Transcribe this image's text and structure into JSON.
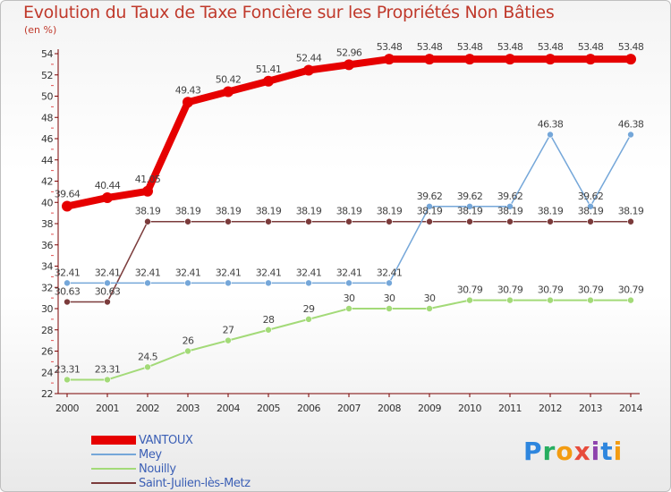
{
  "title": "Evolution du Taux de Taxe Foncière sur les Propriétés Non Bâties",
  "unit_label": "(en %)",
  "logo": {
    "text": "Proxiti",
    "letters": [
      "P",
      "r",
      "o",
      "x",
      "i",
      "t",
      "i"
    ],
    "colors": [
      "#2e86de",
      "#27ae60",
      "#f39c12",
      "#e74c3c",
      "#8e44ad",
      "#2e86de",
      "#f39c12"
    ]
  },
  "chart_data": {
    "type": "line",
    "title": "Evolution du Taux de Taxe Foncière sur les Propriétés Non Bâties",
    "ylabel": "(en %)",
    "xlabel": "",
    "ylim": [
      22,
      54
    ],
    "yticks": [
      22,
      24,
      26,
      28,
      30,
      32,
      34,
      36,
      38,
      40,
      42,
      44,
      46,
      48,
      50,
      52,
      54
    ],
    "x": [
      "2000",
      "2001",
      "2002",
      "2003",
      "2004",
      "2005",
      "2006",
      "2007",
      "2008",
      "2009",
      "2010",
      "2011",
      "2012",
      "2013",
      "2014"
    ],
    "series": [
      {
        "name": "VANTOUX",
        "color": "#e60000",
        "values": [
          39.64,
          40.44,
          41.05,
          49.43,
          50.42,
          51.41,
          52.44,
          52.96,
          53.48,
          53.48,
          53.48,
          53.48,
          53.48,
          53.48,
          53.48
        ],
        "labels": [
          "39.64",
          "40.44",
          "41.05",
          "49.43",
          "50.42",
          "51.41",
          "52.44",
          "52.96",
          "53.48",
          "53.48",
          "53.48",
          "53.48",
          "53.48",
          "53.48",
          "53.48"
        ]
      },
      {
        "name": "Mey",
        "color": "#75a7d9",
        "values": [
          32.41,
          32.41,
          32.41,
          32.41,
          32.41,
          32.41,
          32.41,
          32.41,
          32.41,
          39.62,
          39.62,
          39.62,
          46.38,
          39.62,
          46.38
        ],
        "labels": [
          "32.41",
          "32.41",
          "32.41",
          "32.41",
          "32.41",
          "32.41",
          "32.41",
          "32.41",
          "32.41",
          "39.62",
          "39.62",
          "39.62",
          "46.38",
          "39.62",
          "46.38"
        ]
      },
      {
        "name": "Nouilly",
        "color": "#a3da78",
        "values": [
          23.31,
          23.31,
          24.5,
          26,
          27,
          28,
          29,
          30,
          30,
          30,
          30.79,
          30.79,
          30.79,
          30.79,
          30.79
        ],
        "labels": [
          "23.31",
          "23.31",
          "24.5",
          "26",
          "27",
          "28",
          "29",
          "30",
          "30",
          "30",
          "30.79",
          "30.79",
          "30.79",
          "30.79",
          "30.79"
        ]
      },
      {
        "name": "Saint-Julien-lès-Metz",
        "color": "#7b3b3b",
        "values": [
          30.63,
          30.63,
          38.19,
          38.19,
          38.19,
          38.19,
          38.19,
          38.19,
          38.19,
          38.19,
          38.19,
          38.19,
          38.19,
          38.19,
          38.19
        ],
        "labels": [
          "30.63",
          "30.63",
          "38.19",
          "38.19",
          "38.19",
          "38.19",
          "38.19",
          "38.19",
          "38.19",
          "38.19",
          "38.19",
          "38.19",
          "38.19",
          "38.19",
          "38.19"
        ]
      }
    ],
    "grid": false,
    "legend": "bottom-left"
  }
}
